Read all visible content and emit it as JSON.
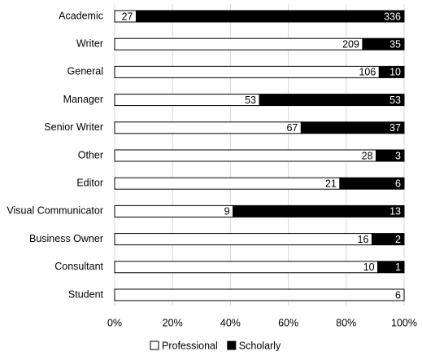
{
  "chart_data": {
    "type": "bar",
    "orientation": "horizontal",
    "stacking": "percent",
    "categories": [
      "Academic",
      "Writer",
      "General",
      "Manager",
      "Senior Writer",
      "Other",
      "Editor",
      "Visual Communicator",
      "Business Owner",
      "Consultant",
      "Student"
    ],
    "series": [
      {
        "name": "Professional",
        "color": "#ffffff",
        "values": [
          27,
          209,
          106,
          53,
          67,
          28,
          21,
          9,
          16,
          10,
          6
        ]
      },
      {
        "name": "Scholarly",
        "color": "#000000",
        "values": [
          336,
          35,
          10,
          53,
          37,
          3,
          6,
          13,
          2,
          1,
          null
        ]
      }
    ],
    "xlim": [
      0,
      100
    ],
    "xticks": [
      {
        "value": 0,
        "label": "0%"
      },
      {
        "value": 20,
        "label": "20%"
      },
      {
        "value": 40,
        "label": "40%"
      },
      {
        "value": 60,
        "label": "60%"
      },
      {
        "value": 80,
        "label": "80%"
      },
      {
        "value": 100,
        "label": "100%"
      }
    ],
    "grid": true,
    "legend": "bottom"
  }
}
